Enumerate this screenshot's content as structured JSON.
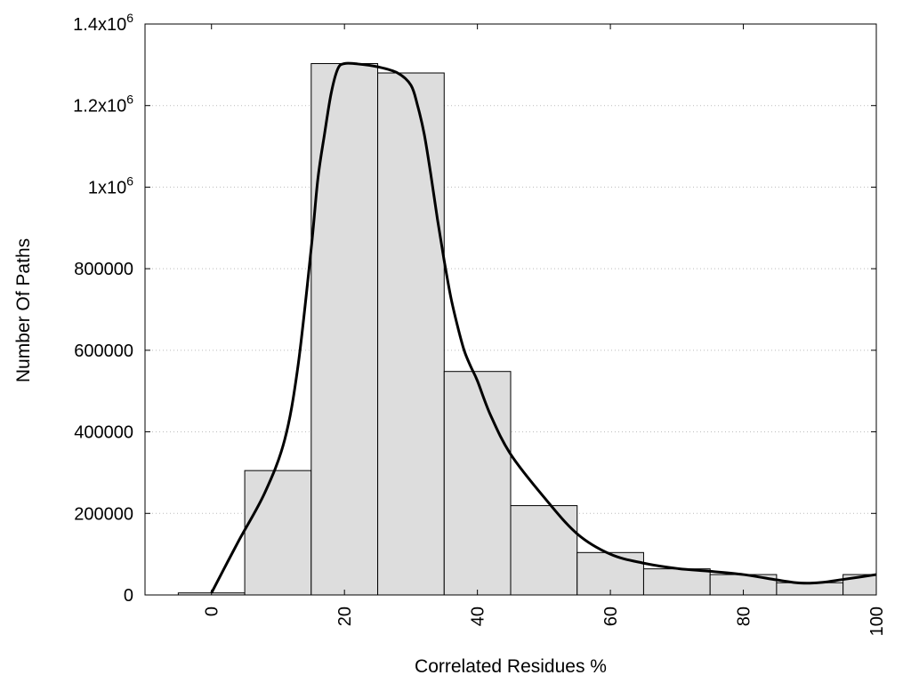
{
  "chart_data": {
    "type": "bar",
    "title": "",
    "xlabel": "Correlated Residues %",
    "ylabel": "Number Of Paths",
    "xlim": [
      -10,
      100
    ],
    "ylim": [
      0,
      1400000
    ],
    "grid": true,
    "bar_color": "#dddddd",
    "bar_edge_color": "#000000",
    "curve_color": "#000000",
    "bin_width": 10,
    "x": [
      0,
      10,
      20,
      30,
      40,
      50,
      60,
      70,
      80,
      90,
      100
    ],
    "values": [
      5000,
      305000,
      1303000,
      1280000,
      548000,
      219000,
      104000,
      64000,
      50000,
      30000,
      50000
    ],
    "curve": {
      "x": [
        0,
        4,
        8,
        11,
        13,
        15,
        16,
        17,
        18,
        19,
        20,
        22,
        25,
        28,
        30,
        31,
        32,
        33,
        34,
        35,
        36,
        37,
        38,
        39,
        40,
        42,
        45,
        50,
        55,
        60,
        65,
        70,
        75,
        80,
        85,
        88,
        90,
        92,
        95,
        100
      ],
      "y": [
        5000,
        130000,
        250000,
        380000,
        560000,
        850000,
        1020000,
        1130000,
        1230000,
        1290000,
        1303000,
        1302000,
        1295000,
        1280000,
        1250000,
        1200000,
        1130000,
        1030000,
        920000,
        820000,
        730000,
        660000,
        600000,
        560000,
        525000,
        440000,
        345000,
        240000,
        150000,
        100000,
        78000,
        65000,
        58000,
        50000,
        37000,
        30000,
        29000,
        31000,
        38000,
        50000
      ]
    },
    "x_ticks": [
      "0",
      "20",
      "40",
      "60",
      "80",
      "100"
    ],
    "x_tick_values": [
      0,
      20,
      40,
      60,
      80,
      100
    ],
    "y_tick_values": [
      0,
      200000,
      400000,
      600000,
      800000,
      1000000,
      1200000,
      1400000
    ],
    "y_ticks": [
      {
        "base": "0",
        "exp": ""
      },
      {
        "base": "200000",
        "exp": ""
      },
      {
        "base": "400000",
        "exp": ""
      },
      {
        "base": "600000",
        "exp": ""
      },
      {
        "base": "800000",
        "exp": ""
      },
      {
        "base": "1x10",
        "exp": "6"
      },
      {
        "base": "1.2x10",
        "exp": "6"
      },
      {
        "base": "1.4x10",
        "exp": "6"
      }
    ]
  }
}
